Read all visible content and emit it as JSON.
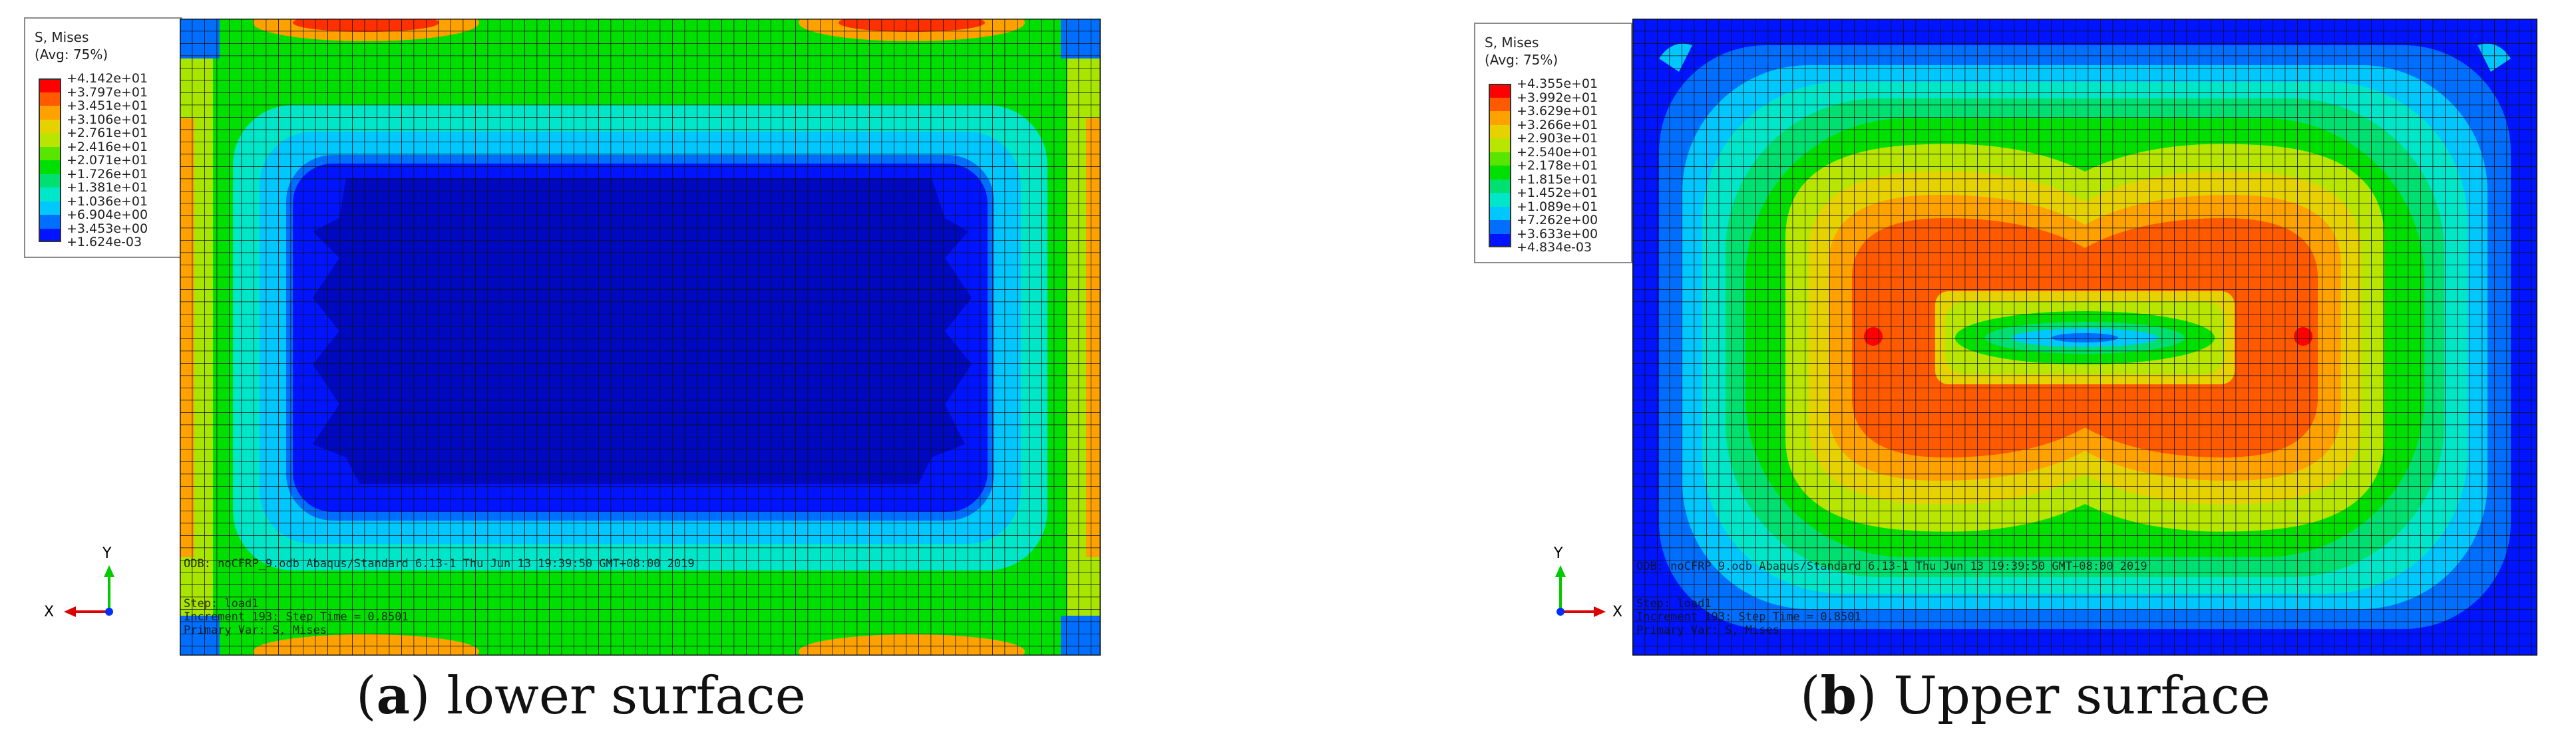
{
  "panels": [
    {
      "id": "a",
      "legend": {
        "title_line1": "S, Mises",
        "title_line2": "(Avg: 75%)",
        "values": [
          "+4.142e+01",
          "+3.797e+01",
          "+3.451e+01",
          "+3.106e+01",
          "+2.761e+01",
          "+2.416e+01",
          "+2.071e+01",
          "+1.726e+01",
          "+1.381e+01",
          "+1.036e+01",
          "+6.904e+00",
          "+3.453e+00",
          "+1.624e-03"
        ],
        "colors": [
          "#ff0000",
          "#ff5a00",
          "#ffa200",
          "#e6d200",
          "#b8e600",
          "#58e600",
          "#00e000",
          "#00e070",
          "#00e6c8",
          "#00c8ff",
          "#006eff",
          "#0014ff",
          "#0000c8"
        ]
      },
      "info": {
        "odb_line": "ODB: noCFRP_9.odb    Abaqus/Standard 6.13-1    Thu Jun 13 19:39:50 GMT+08:00 2019",
        "step_line": "Step: load1",
        "increment_line": "Increment    193: Step Time =    0.8501",
        "var_line": "Primary Var: S, Mises"
      },
      "triad": {
        "y_label": "Y",
        "x_label": "X"
      },
      "caption": {
        "letter": "a",
        "text": " lower surface"
      }
    },
    {
      "id": "b",
      "legend": {
        "title_line1": "S, Mises",
        "title_line2": "(Avg: 75%)",
        "values": [
          "+4.355e+01",
          "+3.992e+01",
          "+3.629e+01",
          "+3.266e+01",
          "+2.903e+01",
          "+2.540e+01",
          "+2.178e+01",
          "+1.815e+01",
          "+1.452e+01",
          "+1.089e+01",
          "+7.262e+00",
          "+3.633e+00",
          "+4.834e-03"
        ],
        "colors": [
          "#ff0000",
          "#ff5a00",
          "#ffa200",
          "#e6d200",
          "#b8e600",
          "#58e600",
          "#00e000",
          "#00e070",
          "#00e6c8",
          "#00c8ff",
          "#006eff",
          "#0014ff",
          "#0000c8"
        ]
      },
      "info": {
        "odb_line": "ODB: noCFRP_9.odb    Abaqus/Standard 6.13-1    Thu Jun 13 19:39:50 GMT+08:00 2019",
        "step_line": "Step: load1",
        "increment_line": "Increment    193: Step Time =    0.8501",
        "var_line": "Primary Var: S, Mises"
      },
      "triad": {
        "y_label": "Y",
        "x_label": "X"
      },
      "caption": {
        "letter": "b",
        "text": " Upper surface"
      }
    }
  ]
}
